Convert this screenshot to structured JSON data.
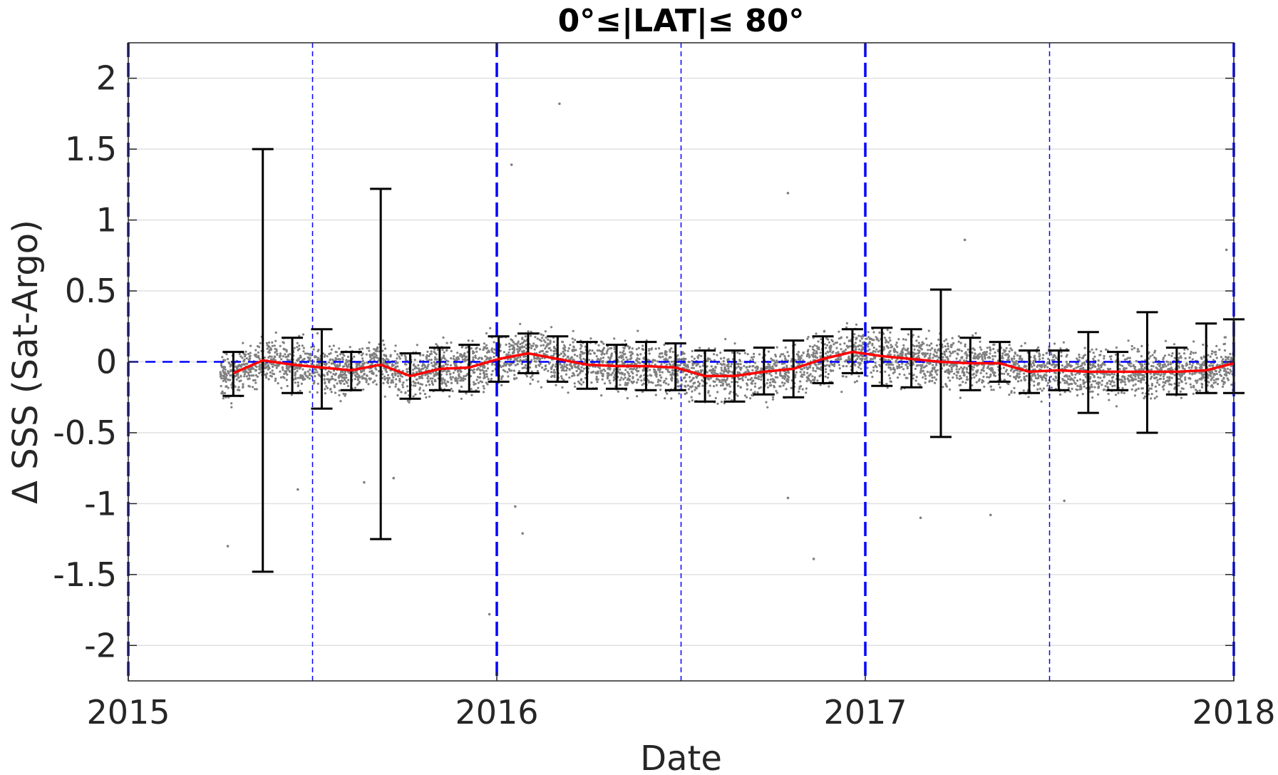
{
  "chart_data": {
    "type": "scatter",
    "title": "0°≤|LAT|≤ 80°",
    "xlabel": "Date",
    "ylabel": "Δ SSS (Sat-Argo)",
    "xlim": [
      2015.0,
      2018.0
    ],
    "ylim": [
      -2.25,
      2.25
    ],
    "xticks": [
      {
        "value": 2015,
        "label": "2015"
      },
      {
        "value": 2016,
        "label": "2016"
      },
      {
        "value": 2017,
        "label": "2017"
      },
      {
        "value": 2018,
        "label": "2018"
      }
    ],
    "yticks": [
      {
        "value": 2,
        "label": "2"
      },
      {
        "value": 1.5,
        "label": "1.5"
      },
      {
        "value": 1,
        "label": "1"
      },
      {
        "value": 0.5,
        "label": "0.5"
      },
      {
        "value": 0,
        "label": "0"
      },
      {
        "value": -0.5,
        "label": "-0.5"
      },
      {
        "value": -1,
        "label": "-1"
      },
      {
        "value": -1.5,
        "label": "-1.5"
      },
      {
        "value": -2,
        "label": "-2"
      }
    ],
    "grid": "horizontal",
    "reference_lines": {
      "year_boundaries": [
        2015.0,
        2016.0,
        2017.0,
        2018.0
      ],
      "mid_year": [
        2015.5,
        2016.5,
        2017.5
      ],
      "zero_line": 0,
      "color": "#0000ff"
    },
    "scatter_cloud": {
      "color": "#808080",
      "x_range": [
        2015.25,
        2018.0
      ],
      "typical_spread_std": 0.11
    },
    "outliers": [
      {
        "x": 2016.17,
        "y": 1.82
      },
      {
        "x": 2016.04,
        "y": 1.39
      },
      {
        "x": 2016.79,
        "y": 1.19
      },
      {
        "x": 2017.27,
        "y": 0.86
      },
      {
        "x": 2017.98,
        "y": 0.79
      },
      {
        "x": 2016.86,
        "y": -1.39
      },
      {
        "x": 2016.07,
        "y": -1.21
      },
      {
        "x": 2015.27,
        "y": -1.3
      },
      {
        "x": 2015.98,
        "y": -1.78
      },
      {
        "x": 2017.34,
        "y": -1.08
      },
      {
        "x": 2015.72,
        "y": -0.82
      },
      {
        "x": 2016.79,
        "y": -0.96
      },
      {
        "x": 2017.54,
        "y": -0.98
      },
      {
        "x": 2017.15,
        "y": -1.1
      },
      {
        "x": 2015.46,
        "y": -0.9
      },
      {
        "x": 2015.64,
        "y": -0.85
      },
      {
        "x": 2016.05,
        "y": -1.02
      }
    ],
    "series": [
      {
        "name": "",
        "type": "line",
        "color": "#ff0000",
        "x": [
          2015.285,
          2015.365,
          2015.445,
          2015.525,
          2015.605,
          2015.685,
          2015.765,
          2015.845,
          2015.925,
          2016.005,
          2016.085,
          2016.165,
          2016.245,
          2016.325,
          2016.405,
          2016.485,
          2016.565,
          2016.645,
          2016.725,
          2016.805,
          2016.885,
          2016.965,
          2017.045,
          2017.125,
          2017.205,
          2017.285,
          2017.365,
          2017.445,
          2017.525,
          2017.605,
          2017.685,
          2017.765,
          2017.845,
          2017.925,
          2018.0
        ],
        "y": [
          -0.08,
          0.01,
          -0.02,
          -0.04,
          -0.06,
          -0.02,
          -0.1,
          -0.05,
          -0.04,
          0.02,
          0.06,
          0.02,
          -0.02,
          -0.03,
          -0.03,
          -0.04,
          -0.1,
          -0.1,
          -0.07,
          -0.05,
          0.02,
          0.07,
          0.04,
          0.02,
          0.0,
          -0.01,
          -0.01,
          -0.07,
          -0.06,
          -0.07,
          -0.07,
          -0.07,
          -0.07,
          -0.06,
          -0.01
        ]
      },
      {
        "name": "",
        "type": "errorbar",
        "color": "#000000",
        "x": [
          2015.285,
          2015.365,
          2015.445,
          2015.525,
          2015.605,
          2015.685,
          2015.765,
          2015.845,
          2015.925,
          2016.005,
          2016.085,
          2016.165,
          2016.245,
          2016.325,
          2016.405,
          2016.485,
          2016.565,
          2016.645,
          2016.725,
          2016.805,
          2016.885,
          2016.965,
          2017.045,
          2017.125,
          2017.205,
          2017.285,
          2017.365,
          2017.445,
          2017.525,
          2017.605,
          2017.685,
          2017.765,
          2017.845,
          2017.925,
          2018.0
        ],
        "y_upper": [
          0.07,
          1.5,
          0.17,
          0.23,
          0.07,
          1.22,
          0.06,
          0.1,
          0.12,
          0.18,
          0.2,
          0.18,
          0.14,
          0.12,
          0.14,
          0.13,
          0.08,
          0.08,
          0.1,
          0.15,
          0.18,
          0.23,
          0.24,
          0.23,
          0.51,
          0.17,
          0.14,
          0.08,
          0.08,
          0.21,
          0.07,
          0.35,
          0.1,
          0.27,
          0.3
        ],
        "y_lower": [
          -0.24,
          -1.48,
          -0.22,
          -0.33,
          -0.2,
          -1.25,
          -0.26,
          -0.2,
          -0.21,
          -0.14,
          -0.08,
          -0.14,
          -0.19,
          -0.19,
          -0.2,
          -0.2,
          -0.28,
          -0.28,
          -0.23,
          -0.25,
          -0.15,
          -0.08,
          -0.17,
          -0.18,
          -0.53,
          -0.2,
          -0.14,
          -0.22,
          -0.2,
          -0.36,
          -0.2,
          -0.5,
          -0.23,
          -0.22,
          -0.22
        ]
      }
    ]
  }
}
